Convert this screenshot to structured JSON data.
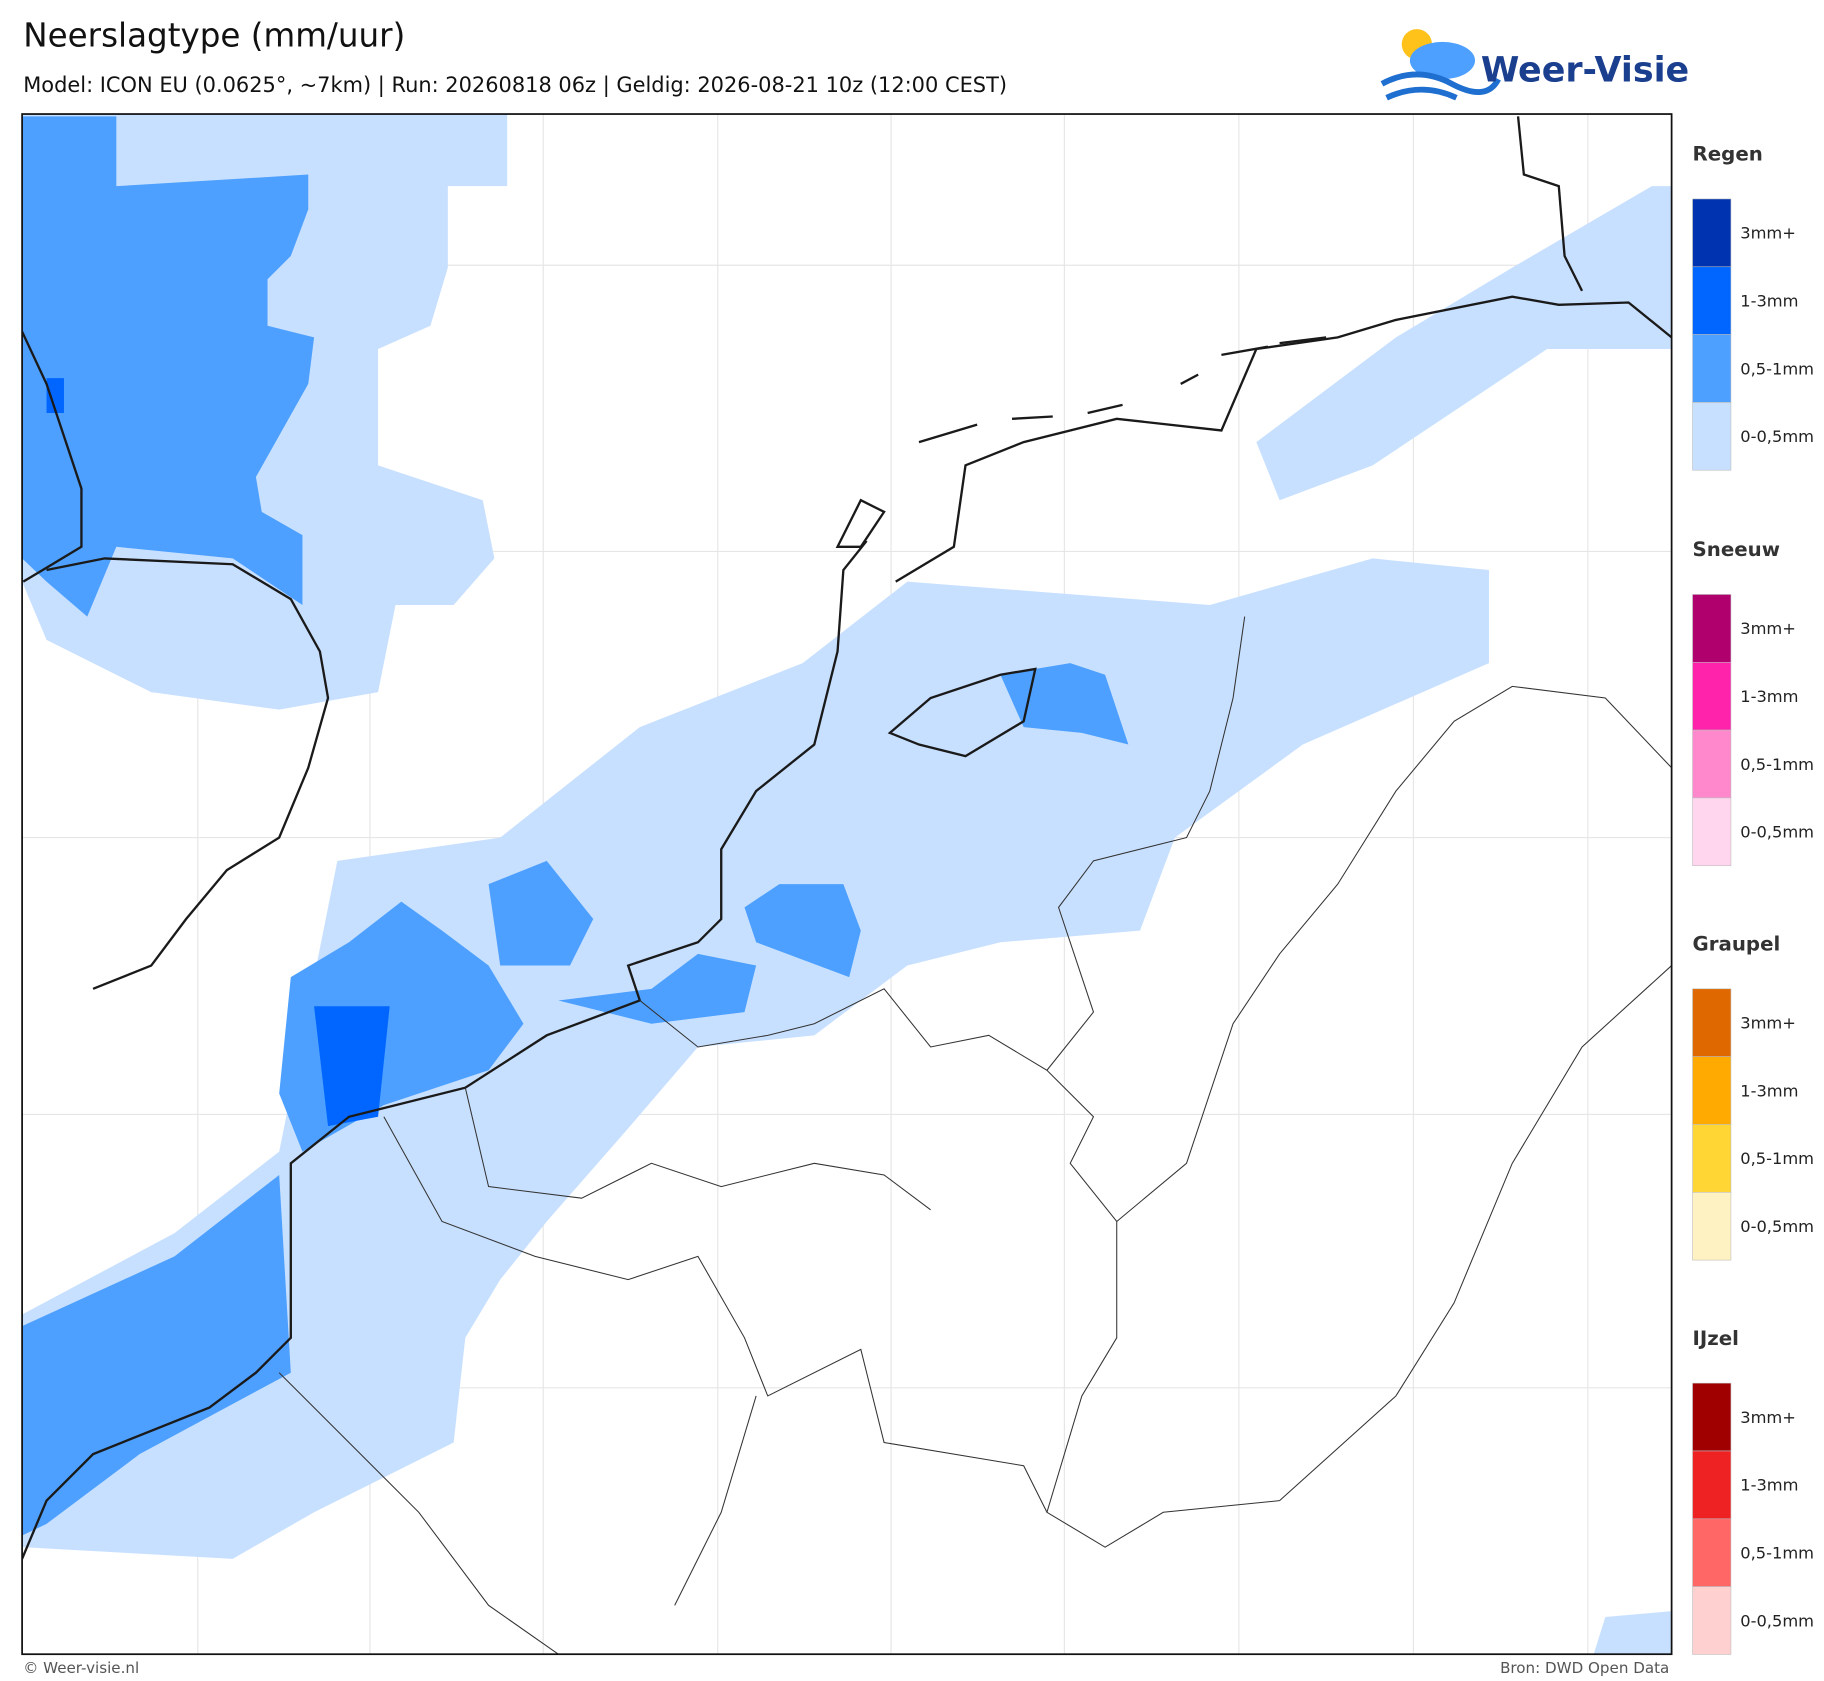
{
  "header": {
    "title": "Neerslagtype (mm/uur)",
    "subtitle": "Model: ICON EU (0.0625°, ~7km)  |  Run: 20260818 06z  |  Geldig: 2026-08-21 10z (12:00 CEST)"
  },
  "logo": "Weer-Visie",
  "legend": [
    {
      "title": "Regen",
      "items": [
        {
          "label": "3mm+",
          "color": "#0033b0"
        },
        {
          "label": "1-3mm",
          "color": "#0066ff"
        },
        {
          "label": "0,5-1mm",
          "color": "#4da0ff"
        },
        {
          "label": "0-0,5mm",
          "color": "#c8e0ff"
        }
      ]
    },
    {
      "title": "Sneeuw",
      "items": [
        {
          "label": "3mm+",
          "color": "#b0006e"
        },
        {
          "label": "1-3mm",
          "color": "#ff22aa"
        },
        {
          "label": "0,5-1mm",
          "color": "#ff88cc"
        },
        {
          "label": "0-0,5mm",
          "color": "#ffd6ee"
        }
      ]
    },
    {
      "title": "Graupel",
      "items": [
        {
          "label": "3mm+",
          "color": "#e06800"
        },
        {
          "label": "1-3mm",
          "color": "#ffaa00"
        },
        {
          "label": "0,5-1mm",
          "color": "#ffd633"
        },
        {
          "label": "0-0,5mm",
          "color": "#fff2c2"
        }
      ]
    },
    {
      "title": "IJzel",
      "items": [
        {
          "label": "3mm+",
          "color": "#a00000"
        },
        {
          "label": "1-3mm",
          "color": "#ee2222"
        },
        {
          "label": "0,5-1mm",
          "color": "#ff6666"
        },
        {
          "label": "0-0,5mm",
          "color": "#ffd0d0"
        }
      ]
    }
  ],
  "footer": {
    "copyright": "© Weer-visie.nl",
    "source": "Bron: DWD Open Data"
  }
}
